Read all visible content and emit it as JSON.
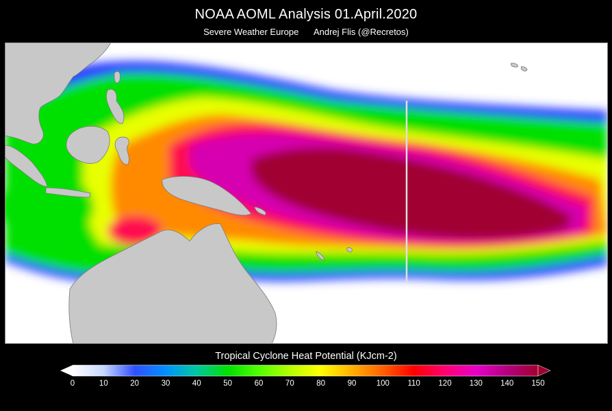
{
  "header": {
    "title": "NOAA AOML Analysis   01.April.2020",
    "source": "Severe Weather Europe",
    "author": "Andrej Flis (@Recretos)"
  },
  "map": {
    "land_color": "#c8c8c8",
    "background_color": "#ffffff",
    "gradient_stops": [
      "#ffffff",
      "#2a2aff",
      "#00e600",
      "#f0ff00",
      "#ff8000",
      "#ff0060",
      "#c800b4",
      "#a00030"
    ]
  },
  "colorbar": {
    "title": "Tropical Cyclone Heat Potential (KJcm-2)",
    "min": 0,
    "max": 150,
    "ticks": [
      "0",
      "10",
      "20",
      "30",
      "40",
      "50",
      "60",
      "70",
      "80",
      "90",
      "100",
      "110",
      "120",
      "130",
      "140",
      "150"
    ],
    "colors": [
      "#ffffff",
      "#c8d8ff",
      "#3050ff",
      "#0090ff",
      "#00c8a0",
      "#00e000",
      "#50ff00",
      "#b4ff00",
      "#ffff00",
      "#ffb000",
      "#ff6000",
      "#ff0000",
      "#ff0070",
      "#e600c8",
      "#b40080",
      "#a00030"
    ]
  }
}
